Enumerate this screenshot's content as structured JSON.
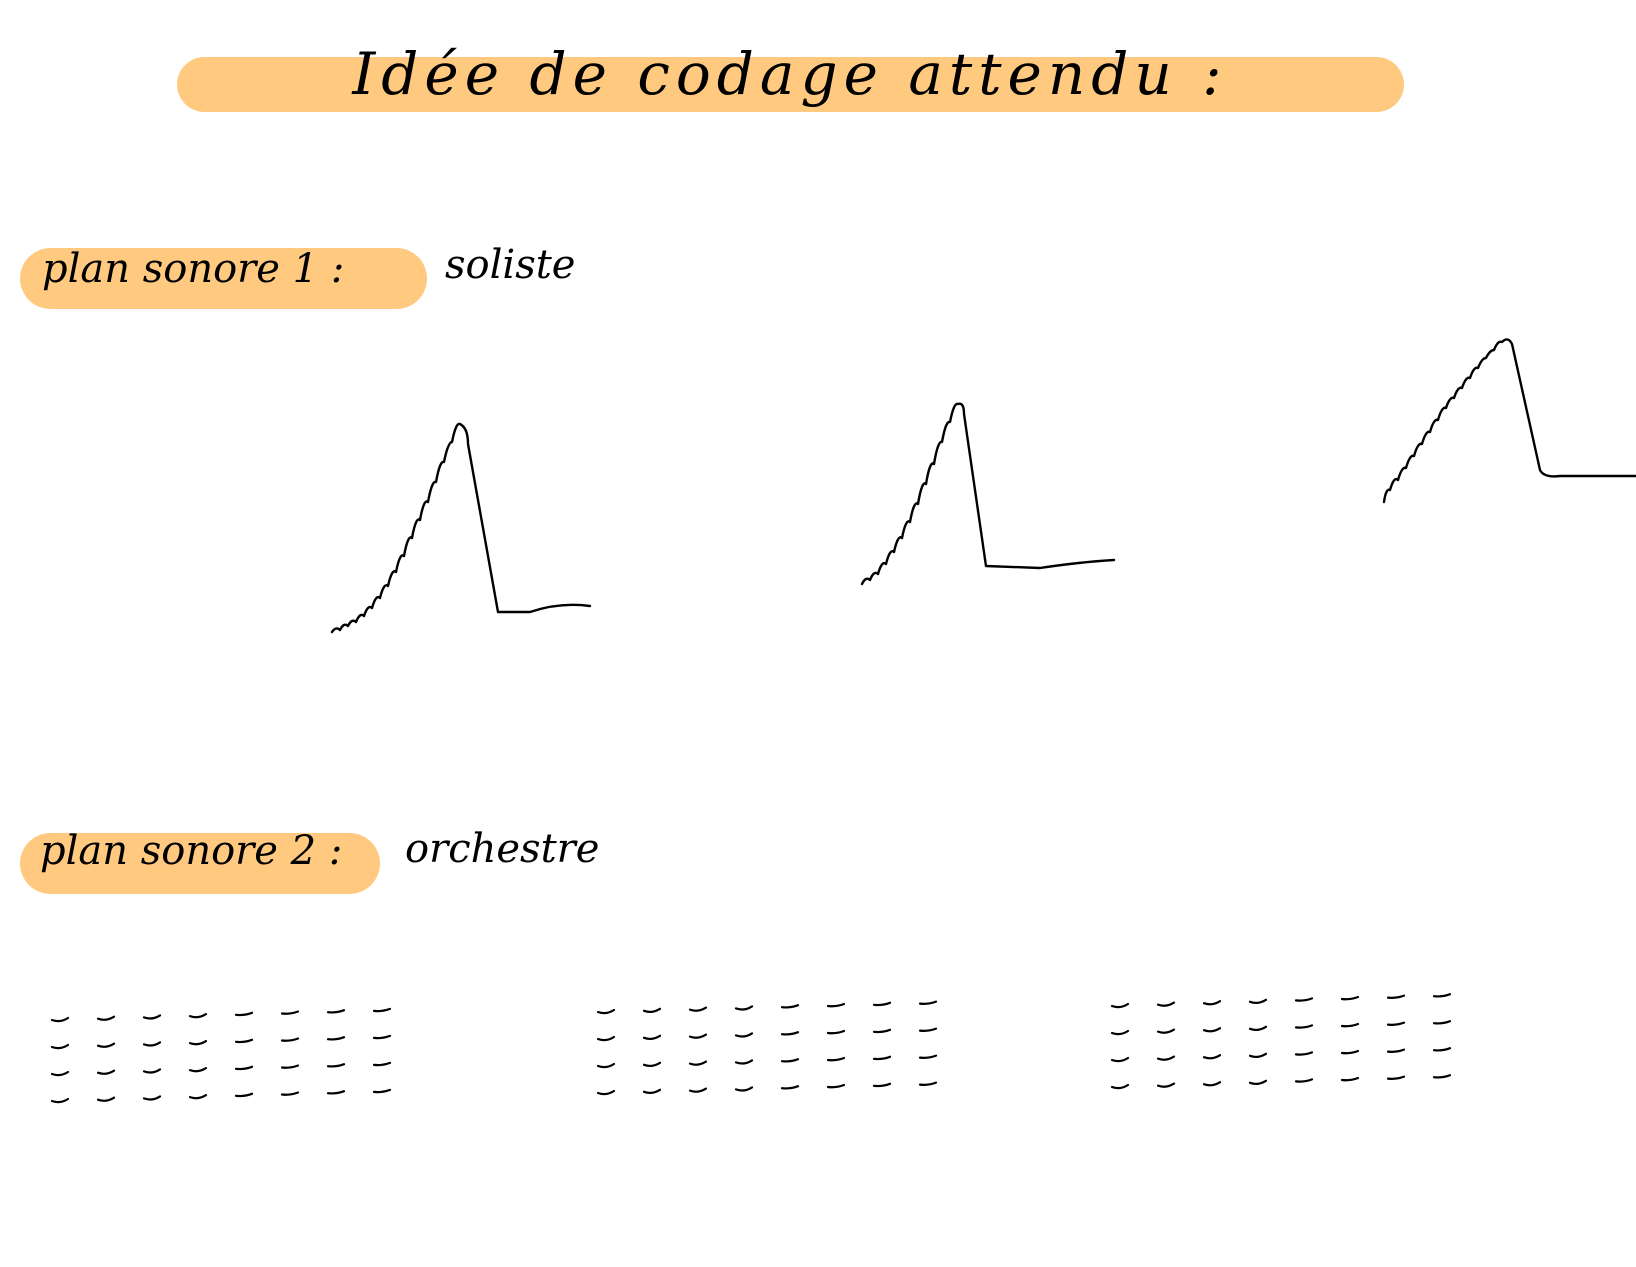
{
  "title": "Idée de codage attendu :",
  "colors": {
    "highlight": "#FFCA80",
    "ink": "#000000"
  },
  "sections": [
    {
      "label": "plan sonore 1 :",
      "value": "soliste"
    },
    {
      "label": "plan sonore 2 :",
      "value": "orchestre"
    }
  ]
}
